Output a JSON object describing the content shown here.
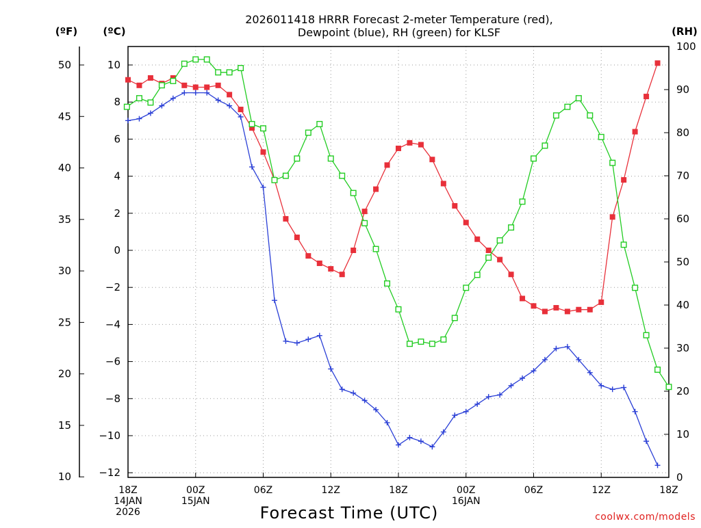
{
  "chart_data": {
    "type": "line",
    "title_lines": [
      "2026011418 HRRR Forecast 2-meter Temperature (red),",
      "Dewpoint (blue), RH (green) for KLSF"
    ],
    "xlabel": "Forecast Time (UTC)",
    "credit": "coolwx.com/models",
    "units": {
      "fahrenheit": "(ºF)",
      "celsius": "(ºC)",
      "rh": "(RH)"
    },
    "x_range": [
      0,
      48
    ],
    "x_ticks": [
      {
        "hour": 0,
        "lines": [
          "18Z",
          "14JAN",
          "2026"
        ]
      },
      {
        "hour": 6,
        "lines": [
          "00Z",
          "15JAN"
        ]
      },
      {
        "hour": 12,
        "lines": [
          "06Z"
        ]
      },
      {
        "hour": 18,
        "lines": [
          "12Z"
        ]
      },
      {
        "hour": 24,
        "lines": [
          "18Z"
        ]
      },
      {
        "hour": 30,
        "lines": [
          "00Z",
          "16JAN"
        ]
      },
      {
        "hour": 36,
        "lines": [
          "06Z"
        ]
      },
      {
        "hour": 42,
        "lines": [
          "12Z"
        ]
      },
      {
        "hour": 48,
        "lines": [
          "18Z"
        ]
      }
    ],
    "y_celsius_range": [
      -12,
      11
    ],
    "y_celsius_ticks": [
      "10",
      "8",
      "6",
      "4",
      "2",
      "0",
      "−2",
      "−4",
      "−6",
      "−8",
      "−10",
      "−12"
    ],
    "y_fahrenheit_ticks": [
      "50",
      "45",
      "40",
      "35",
      "30",
      "25",
      "20",
      "15",
      "10"
    ],
    "y_rh_range": [
      0,
      100
    ],
    "y_rh_ticks": [
      "100",
      "90",
      "80",
      "70",
      "60",
      "50",
      "40",
      "30",
      "20",
      "10",
      "0"
    ],
    "series": [
      {
        "name": "Temperature (°C)",
        "axis": "celsius",
        "color": "#e8303a",
        "marker": "filled-square",
        "values": [
          9.2,
          8.9,
          9.3,
          9.0,
          9.3,
          8.9,
          8.8,
          8.8,
          8.9,
          8.4,
          7.6,
          6.6,
          5.3,
          3.8,
          1.7,
          0.7,
          -0.3,
          -0.7,
          -1.0,
          -1.3,
          0.0,
          2.1,
          3.3,
          4.6,
          5.5,
          5.8,
          5.7,
          4.9,
          3.6,
          2.4,
          1.5,
          0.6,
          0.0,
          -0.5,
          -1.3,
          -2.6,
          -3.0,
          -3.3,
          -3.1,
          -3.3,
          -3.2,
          -3.2,
          -2.8,
          1.8,
          3.8,
          6.4,
          8.3,
          10.1
        ]
      },
      {
        "name": "Dewpoint (°C)",
        "axis": "celsius",
        "color": "#2a3fd6",
        "marker": "plus",
        "values": [
          7.0,
          7.1,
          7.4,
          7.8,
          8.2,
          8.5,
          8.5,
          8.5,
          8.1,
          7.8,
          7.2,
          4.5,
          3.4,
          -2.7,
          -4.9,
          -5.0,
          -4.8,
          -4.6,
          -6.4,
          -7.5,
          -7.7,
          -8.1,
          -8.6,
          -9.3,
          -10.5,
          -10.1,
          -10.3,
          -10.6,
          -9.8,
          -8.9,
          -8.7,
          -8.3,
          -7.9,
          -7.8,
          -7.3,
          -6.9,
          -6.5,
          -5.9,
          -5.3,
          -5.2,
          -5.9,
          -6.6,
          -7.3,
          -7.5,
          -7.4,
          -8.7,
          -10.3,
          -11.6
        ]
      },
      {
        "name": "RH (%)",
        "axis": "rh",
        "color": "#22cc22",
        "marker": "open-square",
        "values": [
          86,
          88,
          87,
          91,
          92,
          96,
          97,
          97,
          94,
          94,
          95,
          82,
          81,
          69,
          70,
          74,
          80,
          82,
          74,
          70,
          66,
          59,
          53,
          45,
          39,
          31,
          31.5,
          31,
          32,
          37,
          44,
          47,
          51,
          55,
          58,
          64,
          74,
          77,
          84,
          86,
          88,
          84,
          79,
          73,
          54,
          44,
          33,
          25,
          21
        ]
      }
    ],
    "rh_x_hours": [
      -0.1,
      1,
      2,
      3,
      4,
      5,
      6,
      7,
      8,
      9,
      10,
      11,
      12,
      13,
      14,
      15,
      16,
      17,
      18,
      19,
      20,
      21,
      22,
      23,
      24,
      25,
      26,
      27,
      28,
      29,
      30,
      31,
      32,
      33,
      34,
      35,
      36,
      37,
      38,
      39,
      40,
      41,
      42,
      43,
      44,
      45,
      46,
      47,
      48
    ]
  }
}
